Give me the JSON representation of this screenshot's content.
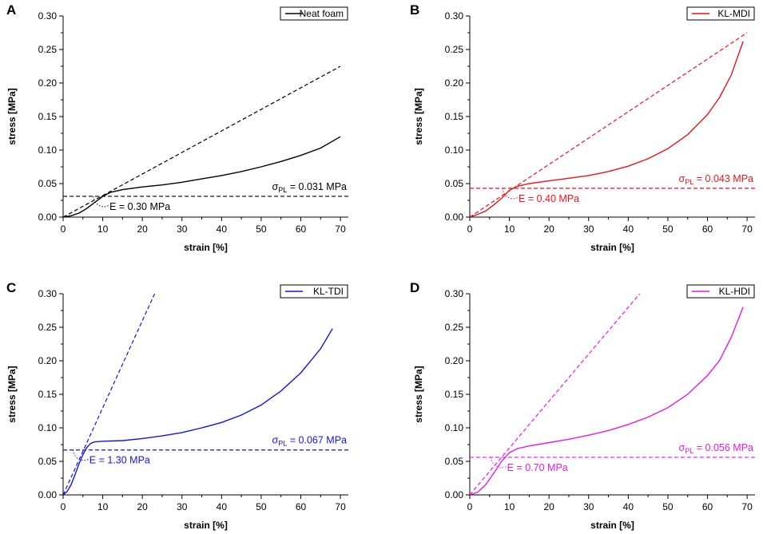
{
  "chart_data": [
    {
      "panel": "A",
      "type": "line",
      "legend": "Neat foam",
      "color": "#000000",
      "xlabel": "strain [%]",
      "ylabel": "stress [MPa]",
      "xlim": [
        0,
        72
      ],
      "ylim": [
        0,
        0.3
      ],
      "xticks": [
        "0",
        "10",
        "20",
        "30",
        "40",
        "50",
        "60",
        "70"
      ],
      "yticks": [
        "0.00",
        "0.05",
        "0.10",
        "0.15",
        "0.20",
        "0.25",
        "0.30"
      ],
      "sigma_label": "0.031 MPa",
      "sigma_value": 0.031,
      "modulus_label": "E = 0.30 MPa",
      "modulus_value": 0.3,
      "curve": [
        [
          0,
          0
        ],
        [
          2,
          0.002
        ],
        [
          4,
          0.006
        ],
        [
          6,
          0.013
        ],
        [
          8,
          0.022
        ],
        [
          10,
          0.031
        ],
        [
          12,
          0.037
        ],
        [
          15,
          0.041
        ],
        [
          20,
          0.045
        ],
        [
          25,
          0.048
        ],
        [
          30,
          0.052
        ],
        [
          35,
          0.057
        ],
        [
          40,
          0.062
        ],
        [
          45,
          0.068
        ],
        [
          50,
          0.075
        ],
        [
          55,
          0.083
        ],
        [
          60,
          0.092
        ],
        [
          65,
          0.103
        ],
        [
          70,
          0.12
        ]
      ],
      "fit_line": [
        [
          0,
          0
        ],
        [
          70,
          0.225
        ]
      ],
      "intersection": [
        10.3,
        0.031
      ]
    },
    {
      "panel": "B",
      "type": "line",
      "legend": "KL-MDI",
      "color": "#e8141b",
      "xlabel": "strain [%]",
      "ylabel": "stress [MPa]",
      "xlim": [
        0,
        72
      ],
      "ylim": [
        0,
        0.3
      ],
      "xticks": [
        "0",
        "10",
        "20",
        "30",
        "40",
        "50",
        "60",
        "70"
      ],
      "yticks": [
        "0.00",
        "0.05",
        "0.10",
        "0.15",
        "0.20",
        "0.25",
        "0.30"
      ],
      "sigma_label": "0.043 MPa",
      "sigma_value": 0.043,
      "modulus_label": "E = 0.40 MPa",
      "modulus_value": 0.4,
      "curve": [
        [
          0,
          0
        ],
        [
          2,
          0.004
        ],
        [
          4,
          0.009
        ],
        [
          6,
          0.018
        ],
        [
          8,
          0.028
        ],
        [
          10,
          0.04
        ],
        [
          12,
          0.046
        ],
        [
          15,
          0.05
        ],
        [
          20,
          0.054
        ],
        [
          25,
          0.058
        ],
        [
          30,
          0.062
        ],
        [
          35,
          0.068
        ],
        [
          40,
          0.076
        ],
        [
          45,
          0.087
        ],
        [
          50,
          0.102
        ],
        [
          55,
          0.123
        ],
        [
          60,
          0.153
        ],
        [
          63,
          0.178
        ],
        [
          66,
          0.212
        ],
        [
          69,
          0.262
        ]
      ],
      "fit_line": [
        [
          0,
          0
        ],
        [
          70,
          0.275
        ]
      ],
      "intersection": [
        10.9,
        0.043
      ]
    },
    {
      "panel": "C",
      "type": "line",
      "legend": "KL-TDI",
      "color": "#1414dc",
      "xlabel": "strain [%]",
      "ylabel": "stress [MPa]",
      "xlim": [
        0,
        72
      ],
      "ylim": [
        0,
        0.3
      ],
      "xticks": [
        "0",
        "10",
        "20",
        "30",
        "40",
        "50",
        "60",
        "70"
      ],
      "yticks": [
        "0.00",
        "0.05",
        "0.10",
        "0.15",
        "0.20",
        "0.25",
        "0.30"
      ],
      "sigma_label": "0.067 MPa",
      "sigma_value": 0.067,
      "modulus_label": "E = 1.30 MPa",
      "modulus_value": 1.3,
      "curve": [
        [
          0,
          0
        ],
        [
          1,
          0.005
        ],
        [
          2,
          0.015
        ],
        [
          3,
          0.03
        ],
        [
          4,
          0.046
        ],
        [
          5,
          0.06
        ],
        [
          6,
          0.071
        ],
        [
          7,
          0.077
        ],
        [
          8,
          0.079
        ],
        [
          10,
          0.08
        ],
        [
          15,
          0.081
        ],
        [
          20,
          0.084
        ],
        [
          25,
          0.088
        ],
        [
          30,
          0.093
        ],
        [
          35,
          0.1
        ],
        [
          40,
          0.108
        ],
        [
          45,
          0.119
        ],
        [
          50,
          0.134
        ],
        [
          55,
          0.155
        ],
        [
          60,
          0.182
        ],
        [
          65,
          0.218
        ],
        [
          68,
          0.248
        ]
      ],
      "fit_line": [
        [
          0,
          0
        ],
        [
          23.1,
          0.3
        ]
      ],
      "intersection": [
        5.2,
        0.067
      ]
    },
    {
      "panel": "D",
      "type": "line",
      "legend": "KL-HDI",
      "color": "#e619e6",
      "xlabel": "strain [%]",
      "ylabel": "stress [MPa]",
      "xlim": [
        0,
        72
      ],
      "ylim": [
        0,
        0.3
      ],
      "xticks": [
        "0",
        "10",
        "20",
        "30",
        "40",
        "50",
        "60",
        "70"
      ],
      "yticks": [
        "0.00",
        "0.05",
        "0.10",
        "0.15",
        "0.20",
        "0.25",
        "0.30"
      ],
      "sigma_label": "0.056 MPa",
      "sigma_value": 0.056,
      "modulus_label": "E = 0.70 MPa",
      "modulus_value": 0.7,
      "curve": [
        [
          0,
          0
        ],
        [
          2,
          0.004
        ],
        [
          4,
          0.015
        ],
        [
          6,
          0.032
        ],
        [
          8,
          0.05
        ],
        [
          10,
          0.063
        ],
        [
          12,
          0.069
        ],
        [
          15,
          0.073
        ],
        [
          20,
          0.078
        ],
        [
          25,
          0.083
        ],
        [
          30,
          0.089
        ],
        [
          35,
          0.096
        ],
        [
          40,
          0.105
        ],
        [
          45,
          0.116
        ],
        [
          50,
          0.13
        ],
        [
          55,
          0.15
        ],
        [
          60,
          0.178
        ],
        [
          63,
          0.2
        ],
        [
          66,
          0.235
        ],
        [
          69,
          0.28
        ]
      ],
      "fit_line": [
        [
          0,
          0
        ],
        [
          42.9,
          0.3
        ]
      ],
      "intersection": [
        8.0,
        0.056
      ]
    }
  ],
  "sigma_symbol": "σ",
  "sigma_subscript": "PL",
  "sigma_equals": " = "
}
